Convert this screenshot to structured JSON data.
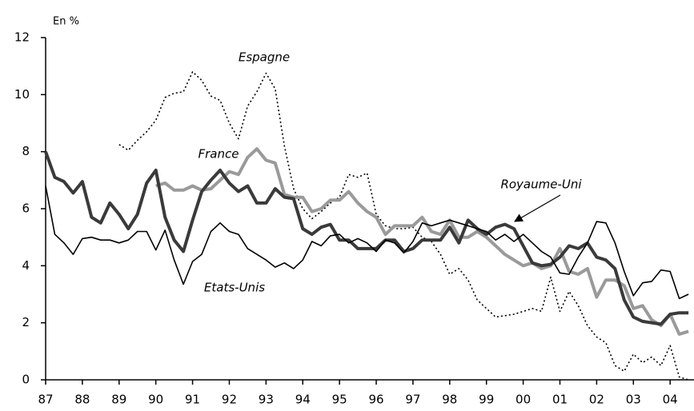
{
  "chart_data": {
    "type": "line",
    "ylabel": "En %",
    "x": [
      1987,
      1987.25,
      1987.5,
      1987.75,
      1988,
      1988.25,
      1988.5,
      1988.75,
      1989,
      1989.25,
      1989.5,
      1989.75,
      1990,
      1990.25,
      1990.5,
      1990.75,
      1991,
      1991.25,
      1991.5,
      1991.75,
      1992,
      1992.25,
      1992.5,
      1992.75,
      1993,
      1993.25,
      1993.5,
      1993.75,
      1994,
      1994.25,
      1994.5,
      1994.75,
      1995,
      1995.25,
      1995.5,
      1995.75,
      1996,
      1996.25,
      1996.5,
      1996.75,
      1997,
      1997.25,
      1997.5,
      1997.75,
      1998,
      1998.25,
      1998.5,
      1998.75,
      1999,
      1999.25,
      1999.5,
      1999.75,
      2000,
      2000.25,
      2000.5,
      2000.75,
      2001,
      2001.25,
      2001.5,
      2001.75,
      2002,
      2002.25,
      2002.5,
      2002.75,
      2003,
      2003.25,
      2003.5,
      2003.75,
      2004,
      2004.25,
      2004.5
    ],
    "xlim": [
      1987,
      2004.65
    ],
    "xticks": [
      {
        "value": 1987,
        "label": "87"
      },
      {
        "value": 1988,
        "label": "88"
      },
      {
        "value": 1989,
        "label": "89"
      },
      {
        "value": 1990,
        "label": "90"
      },
      {
        "value": 1991,
        "label": "91"
      },
      {
        "value": 1992,
        "label": "92"
      },
      {
        "value": 1993,
        "label": "93"
      },
      {
        "value": 1994,
        "label": "94"
      },
      {
        "value": 1995,
        "label": "95"
      },
      {
        "value": 1996,
        "label": "96"
      },
      {
        "value": 1997,
        "label": "97"
      },
      {
        "value": 1998,
        "label": "98"
      },
      {
        "value": 1999,
        "label": "99"
      },
      {
        "value": 2000,
        "label": "00"
      },
      {
        "value": 2001,
        "label": "01"
      },
      {
        "value": 2002,
        "label": "02"
      },
      {
        "value": 2003,
        "label": "03"
      },
      {
        "value": 2004,
        "label": "04"
      }
    ],
    "ylim": [
      0,
      12
    ],
    "yticks": [
      0,
      2,
      4,
      6,
      8,
      10,
      12
    ],
    "series": [
      {
        "name": "Espagne",
        "color": "#000000",
        "style": "dotted",
        "values": [
          null,
          null,
          null,
          null,
          null,
          null,
          null,
          null,
          8.25,
          8.05,
          8.4,
          8.7,
          9.1,
          9.9,
          10.05,
          10.1,
          10.8,
          10.5,
          9.95,
          9.8,
          9.0,
          8.45,
          9.6,
          10.1,
          10.75,
          10.2,
          8.2,
          6.7,
          6.0,
          5.65,
          5.9,
          6.2,
          6.4,
          7.2,
          7.1,
          7.25,
          5.8,
          5.4,
          5.3,
          5.3,
          5.35,
          5.0,
          4.85,
          4.4,
          3.7,
          3.9,
          3.5,
          2.8,
          2.5,
          2.2,
          2.25,
          2.3,
          2.4,
          2.5,
          2.4,
          3.6,
          2.4,
          3.1,
          2.6,
          1.9,
          1.5,
          1.3,
          0.5,
          0.3,
          0.9,
          0.6,
          0.8,
          0.5,
          1.2,
          0.1,
          0.0
        ]
      },
      {
        "name": "France",
        "color": "#9a9a9a",
        "style": "thick",
        "values": [
          null,
          null,
          null,
          null,
          null,
          null,
          null,
          null,
          null,
          null,
          null,
          null,
          6.8,
          6.9,
          6.65,
          6.65,
          6.8,
          6.65,
          6.7,
          7.0,
          7.3,
          7.2,
          7.8,
          8.1,
          7.7,
          7.6,
          6.5,
          6.4,
          6.4,
          5.9,
          6.0,
          6.3,
          6.3,
          6.6,
          6.2,
          5.9,
          5.7,
          5.1,
          5.4,
          5.4,
          5.4,
          5.7,
          5.2,
          5.1,
          5.6,
          5.0,
          5.0,
          5.2,
          5.0,
          4.7,
          4.4,
          4.2,
          4.0,
          4.1,
          3.9,
          4.0,
          4.6,
          3.8,
          3.7,
          3.9,
          2.9,
          3.5,
          3.5,
          3.3,
          2.5,
          2.6,
          2.1,
          1.9,
          2.3,
          1.6,
          1.7
        ]
      },
      {
        "name": "Royaume-Uni",
        "color": "#3a3a3a",
        "style": "thick",
        "values": [
          8.0,
          7.1,
          6.95,
          6.55,
          6.95,
          5.7,
          5.5,
          6.2,
          5.8,
          5.3,
          5.8,
          6.9,
          7.35,
          5.7,
          4.9,
          4.5,
          5.6,
          6.6,
          7.0,
          7.35,
          6.9,
          6.6,
          6.8,
          6.2,
          6.2,
          6.7,
          6.4,
          6.35,
          5.3,
          5.1,
          5.35,
          5.45,
          4.9,
          4.9,
          4.6,
          4.6,
          4.6,
          4.9,
          4.9,
          4.5,
          4.6,
          4.9,
          4.9,
          4.9,
          5.35,
          4.8,
          5.6,
          5.3,
          5.1,
          5.35,
          5.45,
          5.3,
          4.7,
          4.1,
          4.0,
          4.05,
          4.3,
          4.7,
          4.6,
          4.8,
          4.3,
          4.2,
          3.9,
          2.8,
          2.2,
          2.05,
          2.0,
          1.95,
          2.3,
          2.35,
          2.35
        ]
      },
      {
        "name": "Etats-Unis",
        "color": "#000000",
        "style": "thin",
        "values": [
          6.8,
          5.1,
          4.8,
          4.4,
          4.95,
          5.0,
          4.9,
          4.9,
          4.8,
          4.9,
          5.2,
          5.2,
          4.55,
          5.25,
          4.2,
          3.35,
          4.15,
          4.4,
          5.2,
          5.5,
          5.2,
          5.1,
          4.6,
          4.4,
          4.2,
          3.95,
          4.1,
          3.9,
          4.2,
          4.85,
          4.7,
          5.05,
          5.1,
          4.8,
          4.95,
          4.8,
          4.5,
          4.9,
          4.8,
          4.45,
          4.85,
          5.5,
          5.4,
          5.5,
          5.6,
          5.5,
          5.4,
          5.3,
          5.2,
          4.9,
          5.1,
          4.85,
          5.1,
          4.8,
          4.5,
          4.3,
          3.75,
          3.7,
          4.3,
          4.8,
          5.55,
          5.5,
          4.8,
          3.8,
          2.95,
          3.4,
          3.45,
          3.85,
          3.8,
          2.85,
          3.0
        ]
      }
    ]
  }
}
